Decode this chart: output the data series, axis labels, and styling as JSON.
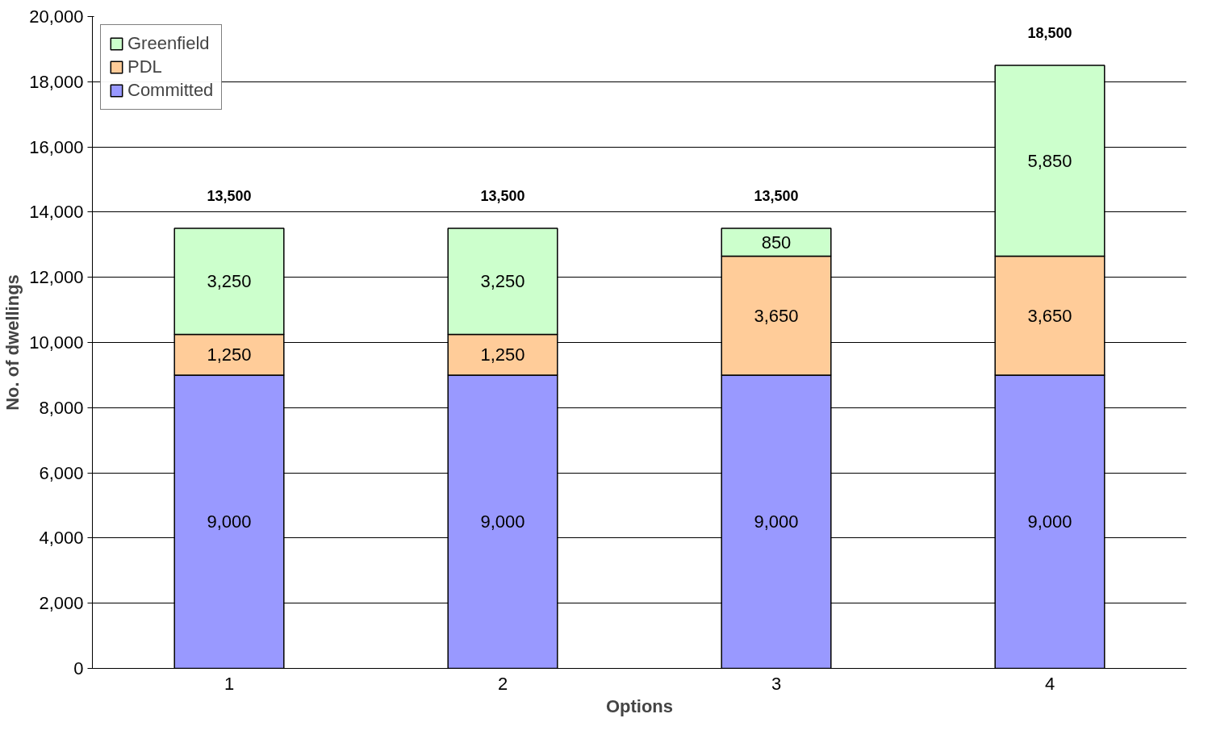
{
  "chart_data": {
    "type": "bar",
    "stacked": true,
    "xlabel": "Options",
    "ylabel": "No. of dwellings",
    "categories": [
      "1",
      "2",
      "3",
      "4"
    ],
    "series": [
      {
        "name": "Committed",
        "color": "#9999ff",
        "values": [
          9000,
          9000,
          9000,
          9000
        ],
        "value_labels": [
          "9,000",
          "9,000",
          "9,000",
          "9,000"
        ]
      },
      {
        "name": "PDL",
        "color": "#ffcc99",
        "values": [
          1250,
          1250,
          3650,
          3650
        ],
        "value_labels": [
          "1,250",
          "1,250",
          "3,650",
          "3,650"
        ]
      },
      {
        "name": "Greenfield",
        "color": "#ccffcc",
        "values": [
          3250,
          3250,
          850,
          5850
        ],
        "value_labels": [
          "3,250",
          "3,250",
          "850",
          "5,850"
        ]
      }
    ],
    "totals": [
      "13,500",
      "13,500",
      "13,500",
      "18,500"
    ],
    "ylim": [
      0,
      20000
    ],
    "yticks": [
      0,
      {
        "value": 2000,
        "label": "2,000"
      },
      {
        "value": 4000,
        "label": "4,000"
      },
      {
        "value": 6000,
        "label": "6,000"
      },
      {
        "value": 8000,
        "label": "8,000"
      },
      {
        "value": 10000,
        "label": "10,000"
      },
      {
        "value": 12000,
        "label": "12,000"
      },
      {
        "value": 14000,
        "label": "14,000"
      },
      {
        "value": 16000,
        "label": "16,000"
      },
      {
        "value": 18000,
        "label": "18,000"
      },
      {
        "value": 20000,
        "label": "20,000"
      }
    ],
    "grid": "y",
    "legend": "top left"
  }
}
